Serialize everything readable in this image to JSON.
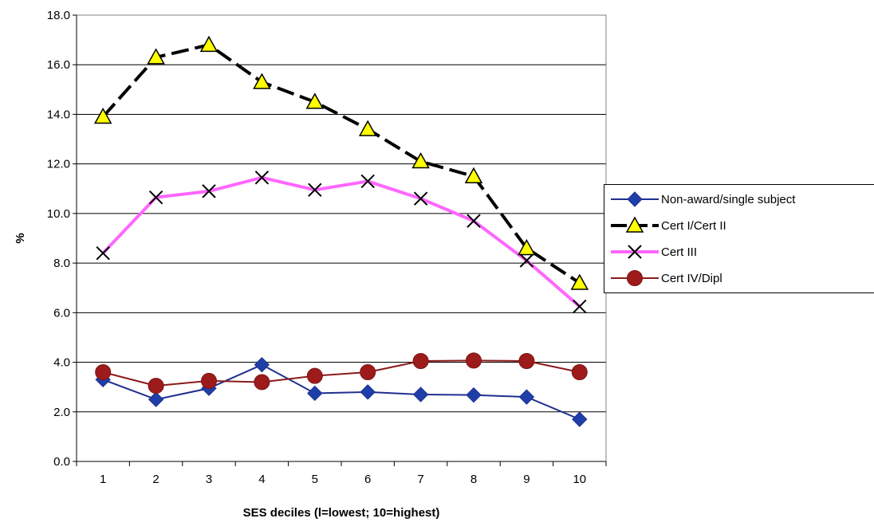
{
  "chart_data": {
    "type": "line",
    "title": "",
    "xlabel": "SES deciles (l=lowest; 10=highest)",
    "ylabel": "%",
    "categories": [
      "1",
      "2",
      "3",
      "4",
      "5",
      "6",
      "7",
      "8",
      "9",
      "10"
    ],
    "ylim": [
      0,
      18
    ],
    "yticks": [
      "0.0",
      "2.0",
      "4.0",
      "6.0",
      "8.0",
      "10.0",
      "12.0",
      "14.0",
      "16.0",
      "18.0"
    ],
    "grid": "horizontal",
    "legend_position": "right",
    "series": [
      {
        "name": "Non-award/single subject",
        "values": [
          3.3,
          2.5,
          2.95,
          3.9,
          2.75,
          2.8,
          2.7,
          2.68,
          2.6,
          1.7
        ],
        "color": "#1f2f8f",
        "marker_color": "#1f3fa8",
        "marker": "diamond",
        "line_style": "solid"
      },
      {
        "name": "Cert I/Cert II",
        "values": [
          13.9,
          16.3,
          16.8,
          15.3,
          14.5,
          13.4,
          12.1,
          11.5,
          8.6,
          7.2
        ],
        "color": "#000000",
        "marker_color": "#ffff00",
        "marker": "triangle",
        "line_style": "dashed"
      },
      {
        "name": "Cert III",
        "values": [
          8.4,
          10.65,
          10.9,
          11.45,
          10.95,
          11.3,
          10.6,
          9.7,
          8.1,
          6.25
        ],
        "color": "#ff66ff",
        "marker_color": "#000000",
        "marker": "x",
        "line_style": "solid"
      },
      {
        "name": "Cert IV/Dipl",
        "values": [
          3.6,
          3.05,
          3.25,
          3.2,
          3.45,
          3.6,
          4.05,
          4.07,
          4.05,
          3.6
        ],
        "color": "#8b1a1a",
        "marker_color": "#9e1b1b",
        "marker": "circle",
        "line_style": "solid"
      }
    ]
  }
}
